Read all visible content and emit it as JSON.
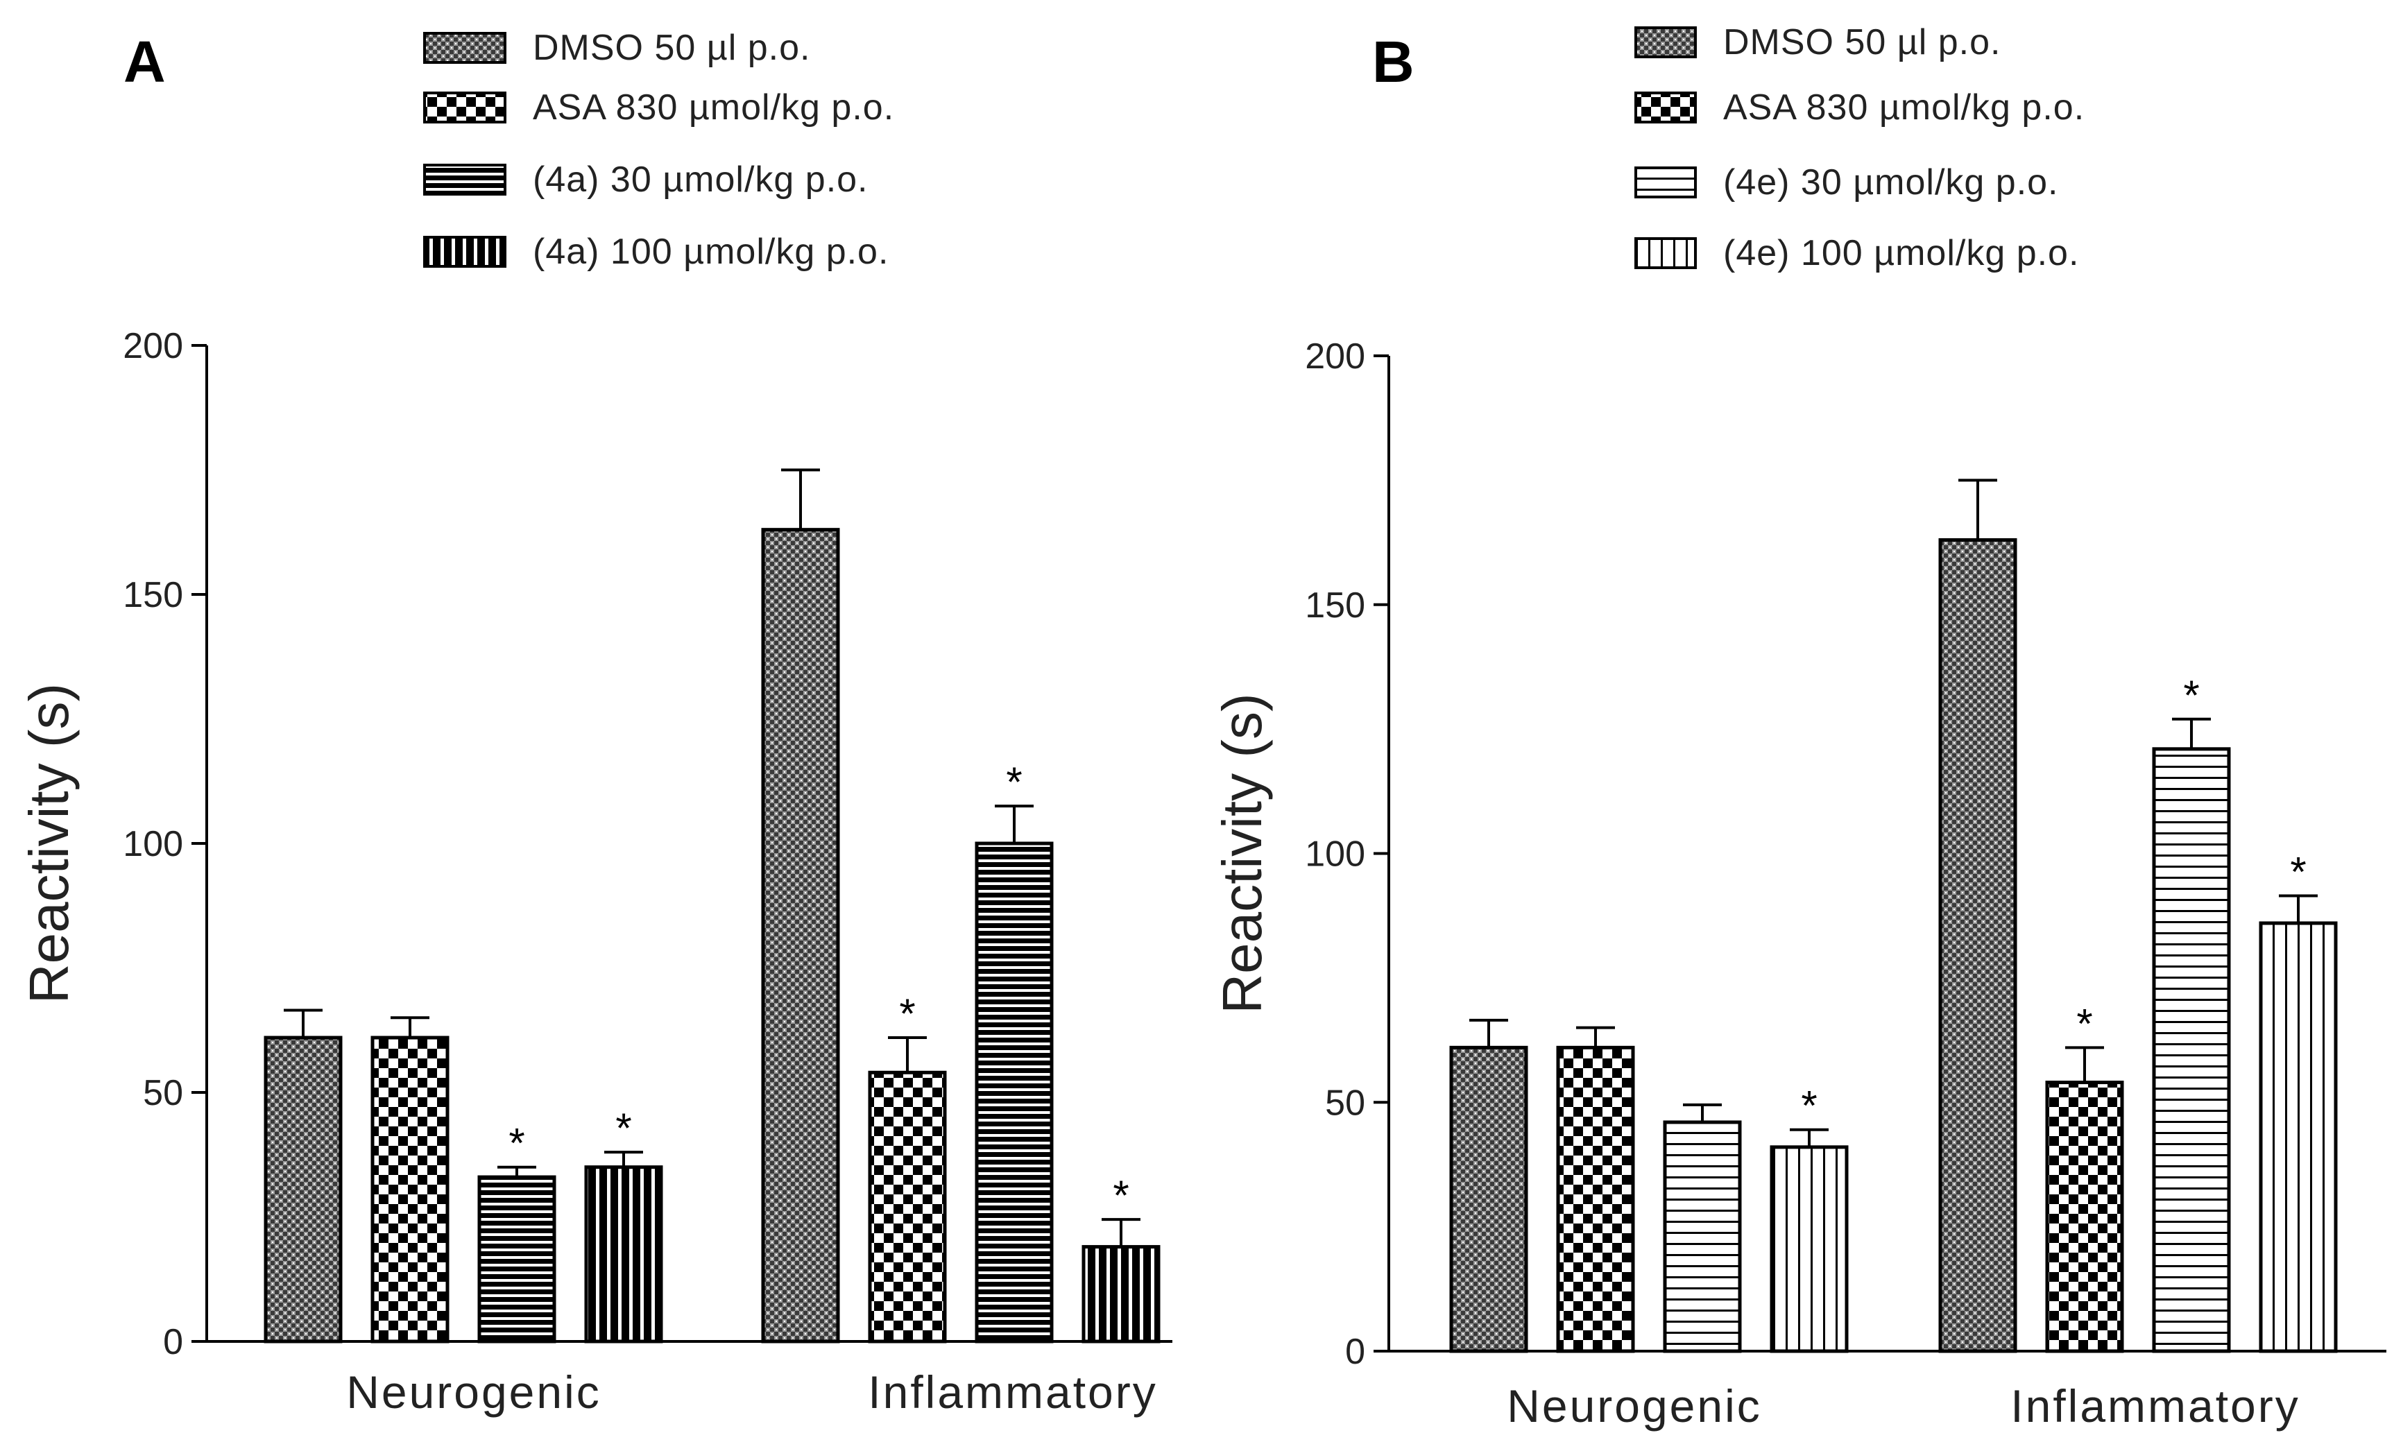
{
  "colors": {
    "ink": "#000000",
    "text": "#222222",
    "background": "#ffffff"
  },
  "chart_data": [
    {
      "panel": "A",
      "type": "bar",
      "categories": [
        "Neurogenic",
        "Inflammatory"
      ],
      "ylabel": "Reactivity (s)",
      "xlabel": "",
      "ylim": [
        0,
        200
      ],
      "yticks": [
        "0",
        "50",
        "100",
        "150",
        "200"
      ],
      "series": [
        {
          "name": "DMSO 50 µl p.o.",
          "pattern": "crosshatch-fine",
          "values": [
            61,
            163
          ],
          "errors": [
            5.5,
            12
          ],
          "significant": [
            false,
            false
          ]
        },
        {
          "name": "ASA 830 µmol/kg p.o.",
          "pattern": "checker",
          "values": [
            61,
            54
          ],
          "errors": [
            4,
            7
          ],
          "significant": [
            false,
            true
          ]
        },
        {
          "name": "(4a) 30 µmol/kg p.o.",
          "pattern": "hlines-dark",
          "values": [
            33,
            100
          ],
          "errors": [
            2,
            7.5
          ],
          "significant": [
            true,
            true
          ]
        },
        {
          "name": "(4a) 100 µmol/kg p.o.",
          "pattern": "vlines-dark",
          "values": [
            35,
            19
          ],
          "errors": [
            3,
            5.5
          ],
          "significant": [
            true,
            true
          ]
        }
      ],
      "significance_mark": "*"
    },
    {
      "panel": "B",
      "type": "bar",
      "categories": [
        "Neurogenic",
        "Inflammatory"
      ],
      "ylabel": "Reactivity (s)",
      "xlabel": "",
      "ylim": [
        0,
        200
      ],
      "yticks": [
        "0",
        "50",
        "100",
        "150",
        "200"
      ],
      "series": [
        {
          "name": "DMSO 50 µl p.o.",
          "pattern": "crosshatch-fine",
          "values": [
            61,
            163
          ],
          "errors": [
            5.5,
            12
          ],
          "significant": [
            false,
            false
          ]
        },
        {
          "name": "ASA 830 µmol/kg p.o.",
          "pattern": "checker",
          "values": [
            61,
            54
          ],
          "errors": [
            4,
            7
          ],
          "significant": [
            false,
            true
          ]
        },
        {
          "name": "(4e) 30 µmol/kg p.o.",
          "pattern": "hlines-light",
          "values": [
            46,
            121
          ],
          "errors": [
            3.5,
            6
          ],
          "significant": [
            false,
            true
          ]
        },
        {
          "name": "(4e) 100 µmol/kg p.o.",
          "pattern": "vlines-light",
          "values": [
            41,
            86
          ],
          "errors": [
            3.5,
            5.5
          ],
          "significant": [
            true,
            true
          ]
        }
      ],
      "significance_mark": "*"
    }
  ]
}
